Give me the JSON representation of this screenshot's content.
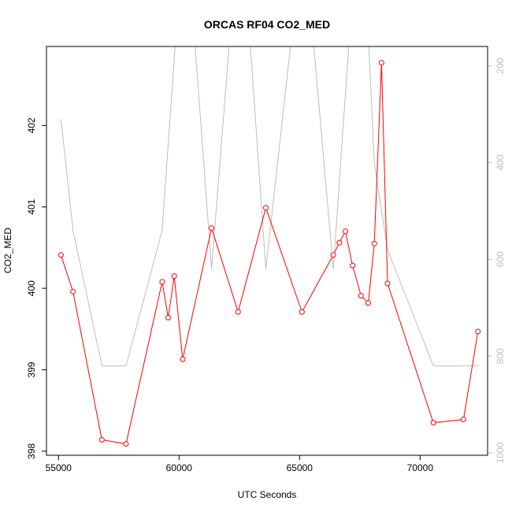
{
  "chart_data": {
    "type": "line",
    "title": "ORCAS RF04 CO2_MED",
    "xlabel": "UTC Seconds",
    "ylabel": "CO2_MED",
    "xlim": [
      54500,
      72800
    ],
    "ylim": [
      397.95,
      402.97
    ],
    "y2lim": [
      1005,
      160
    ],
    "xticks": [
      55000,
      60000,
      65000,
      70000
    ],
    "xtick_labels": [
      "55000",
      "60000",
      "65000",
      "70000"
    ],
    "yticks": [
      398,
      399,
      400,
      401,
      402
    ],
    "ytick_labels": [
      "398",
      "399",
      "400",
      "401",
      "402"
    ],
    "y2ticks": [
      200,
      400,
      600,
      800,
      1000
    ],
    "y2tick_labels": [
      "200",
      "400",
      "600",
      "800",
      "1000"
    ],
    "grid": false,
    "series": [
      {
        "axis": "left",
        "color": "#ff0000",
        "marker": "open-circle",
        "x": [
          55100,
          55600,
          56800,
          57800,
          59300,
          59550,
          59800,
          60150,
          61350,
          62450,
          63600,
          65100,
          66400,
          66650,
          66900,
          67200,
          67550,
          67850,
          68100,
          68400,
          68650,
          70550,
          71800,
          72400
        ],
        "y": [
          400.41,
          399.96,
          398.14,
          398.09,
          400.08,
          399.64,
          400.15,
          399.13,
          400.74,
          399.71,
          400.99,
          399.71,
          400.41,
          400.56,
          400.7,
          400.28,
          399.91,
          399.82,
          400.55,
          402.77,
          400.06,
          398.35,
          398.39,
          399.47
        ]
      },
      {
        "axis": "right",
        "color": "#bebebe",
        "marker": "none",
        "x": [
          55100,
          55600,
          56800,
          57800,
          59300,
          59950,
          60550,
          61350,
          62200,
          62850,
          63600,
          64800,
          65450,
          66400,
          67150,
          67800,
          68100,
          68650,
          70550,
          72400
        ],
        "y": [
          310,
          540,
          820,
          820,
          540,
          80,
          80,
          620,
          80,
          80,
          620,
          80,
          80,
          620,
          80,
          80,
          400,
          580,
          820,
          820
        ]
      }
    ]
  }
}
